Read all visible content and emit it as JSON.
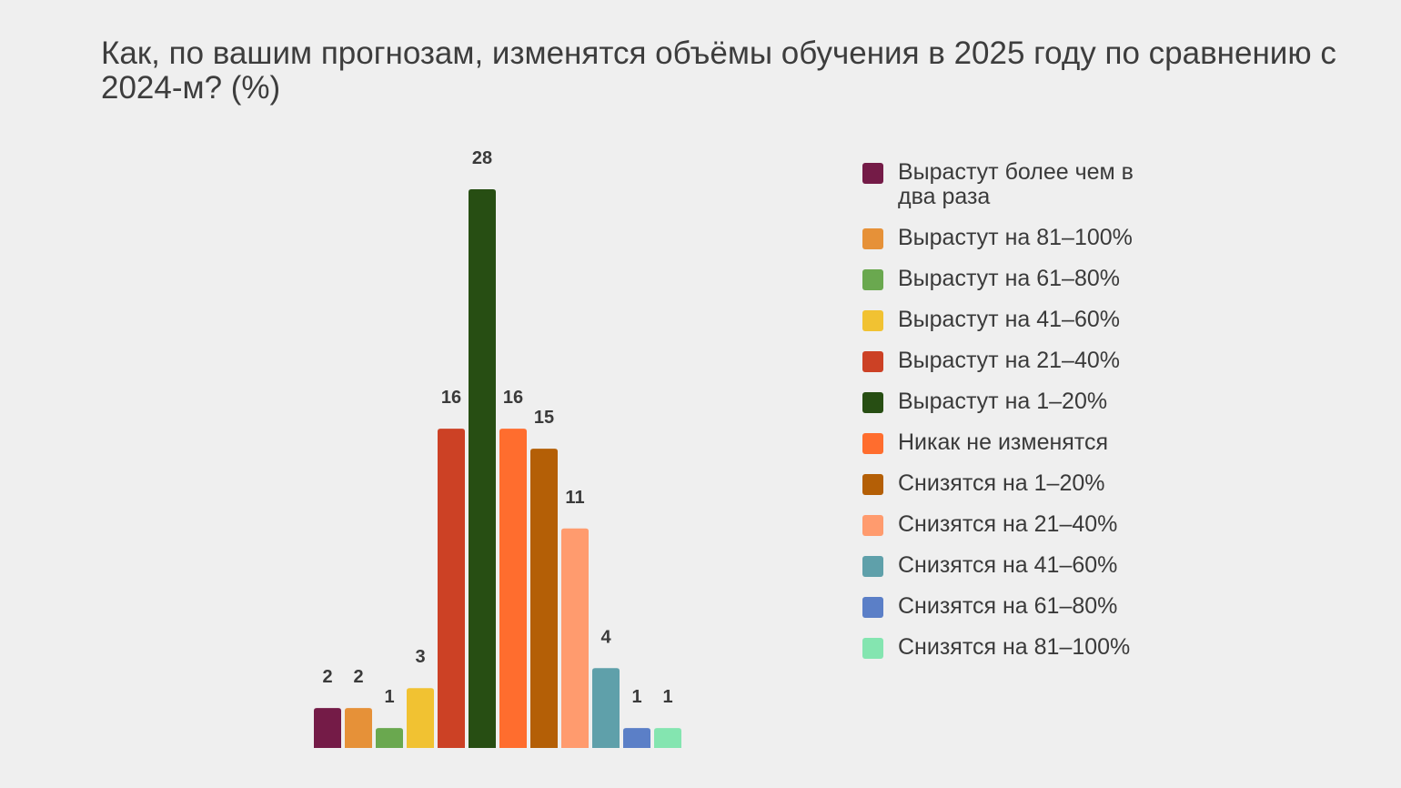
{
  "title": "Как, по вашим прогнозам, изменятся объёмы обучения в 2025 году по сравнению с 2024-м? (%)",
  "chart_data": {
    "type": "bar",
    "title": "Как, по вашим прогнозам, изменятся объёмы обучения в 2025 году по сравнению с 2024-м? (%)",
    "categories": [
      "Вырастут более чем в два раза",
      "Вырастут на 81–100%",
      "Вырастут на 61–80%",
      "Вырастут на 41–60%",
      "Вырастут на 21–40%",
      "Вырастут на 1–20%",
      "Никак не изменятся",
      "Снизятся на 1–20%",
      "Снизятся на 21–40%",
      "Снизятся на 41–60%",
      "Снизятся на 61–80%",
      "Снизятся на 81–100%"
    ],
    "values": [
      2,
      2,
      1,
      3,
      16,
      28,
      16,
      15,
      11,
      4,
      1,
      1
    ],
    "colors": [
      "#741b47",
      "#e69138",
      "#6aa84f",
      "#f1c232",
      "#cc4125",
      "#274e13",
      "#ff6d2e",
      "#b45f06",
      "#ff9b6e",
      "#5fa0aa",
      "#5b7fc7",
      "#84e5b0"
    ],
    "ylim": [
      0,
      28
    ],
    "grid": false,
    "legend": "right",
    "data_labels": true
  }
}
